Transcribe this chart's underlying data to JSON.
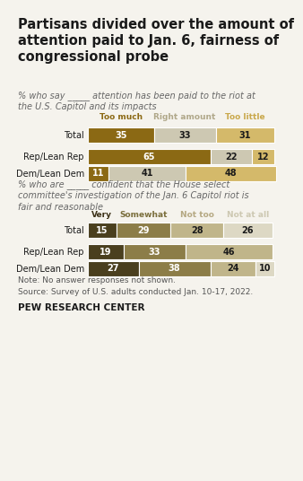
{
  "title": "Partisans divided over the amount of\nattention paid to Jan. 6, fairness of\ncongressional probe",
  "section1_subtitle": "% who say _____ attention has been paid to the riot at\nthe U.S. Capitol and its impacts",
  "section1_legend": [
    "Too much",
    "Right amount",
    "Too little"
  ],
  "section1_legend_colors": [
    "#8B6914",
    "#b0a88a",
    "#c9a84c"
  ],
  "section1_colors": [
    "#8B6914",
    "#cdc8b2",
    "#d4b96a"
  ],
  "section1_rows": [
    "Total",
    "Rep/Lean Rep",
    "Dem/Lean Dem"
  ],
  "section1_data": [
    [
      35,
      33,
      31
    ],
    [
      65,
      22,
      12
    ],
    [
      11,
      41,
      48
    ]
  ],
  "section2_subtitle": "% who are _____ confident that the House select\ncommittee's investigation of the Jan. 6 Capitol riot is\nfair and reasonable",
  "section2_legend": [
    "Very",
    "Somewhat",
    "Not too",
    "Not at all"
  ],
  "section2_legend_colors": [
    "#3d3218",
    "#7a6e3c",
    "#b5a882",
    "#cdc8b2"
  ],
  "section2_colors": [
    "#4a3f1e",
    "#8c7d48",
    "#c0b58a",
    "#ddd8c4"
  ],
  "section2_rows": [
    "Total",
    "Rep/Lean Rep",
    "Dem/Lean Dem"
  ],
  "section2_data": [
    [
      15,
      29,
      28,
      26
    ],
    [
      19,
      33,
      46,
      0
    ],
    [
      27,
      38,
      24,
      10
    ]
  ],
  "note": "Note: No answer responses not shown.",
  "source": "Source: Survey of U.S. adults conducted Jan. 10-17, 2022.",
  "org": "PEW RESEARCH CENTER",
  "bg_color": "#f5f3ed"
}
